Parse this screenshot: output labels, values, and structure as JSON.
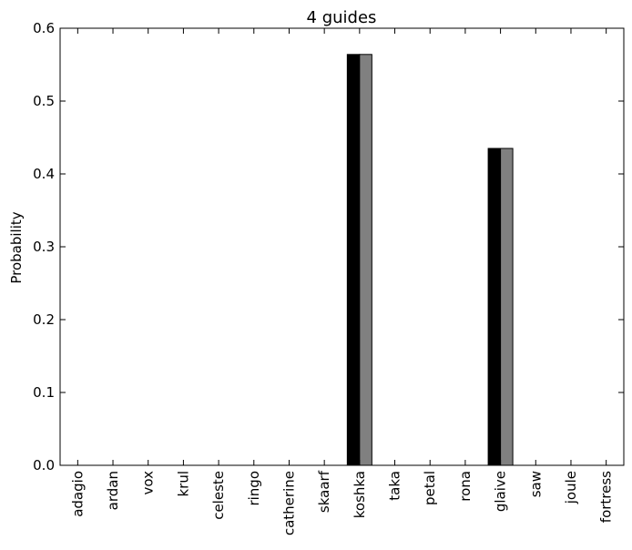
{
  "chart_data": {
    "type": "bar",
    "title": "4 guides",
    "xlabel": "",
    "ylabel": "Probability",
    "ylim": [
      0,
      0.6
    ],
    "yticks": [
      0.0,
      0.1,
      0.2,
      0.3,
      0.4,
      0.5,
      0.6
    ],
    "ytick_labels": [
      "0.0",
      "0.1",
      "0.2",
      "0.3",
      "0.4",
      "0.5",
      "0.6"
    ],
    "grid": false,
    "categories": [
      "adagio",
      "ardan",
      "vox",
      "krul",
      "celeste",
      "ringo",
      "catherine",
      "skaarf",
      "koshka",
      "taka",
      "petal",
      "rona",
      "glaive",
      "saw",
      "joule",
      "fortress"
    ],
    "series": [
      {
        "color": "#000000",
        "values": [
          0,
          0,
          0,
          0,
          0,
          0,
          0,
          0,
          0.564,
          0,
          0,
          0,
          0.435,
          0,
          0,
          0
        ]
      },
      {
        "color": "#808080",
        "values": [
          0,
          0,
          0,
          0,
          0,
          0,
          0,
          0,
          0.564,
          0,
          0,
          0,
          0.435,
          0,
          0,
          0
        ]
      }
    ]
  }
}
